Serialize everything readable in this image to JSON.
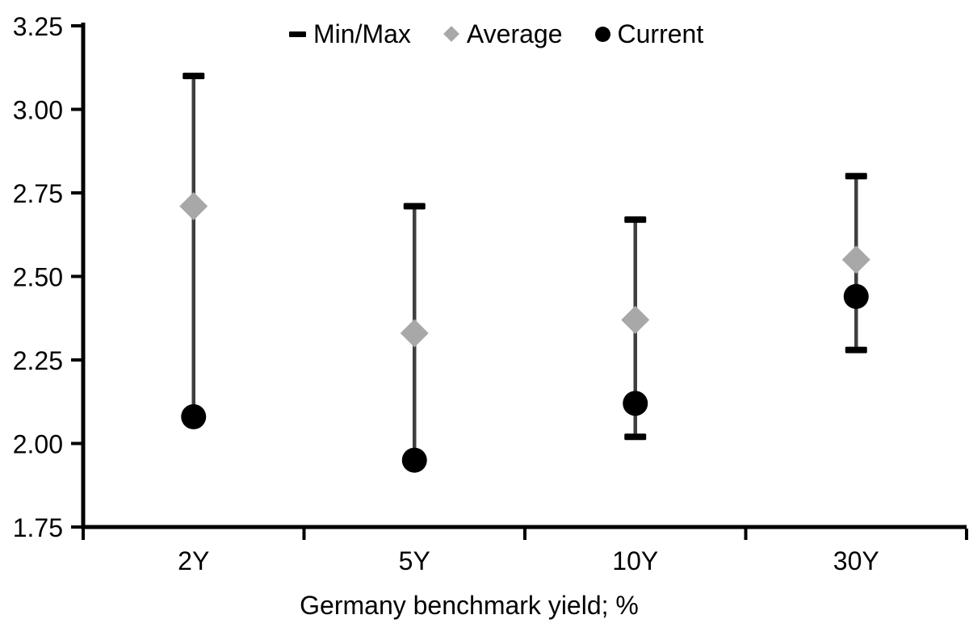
{
  "chart_data": {
    "type": "scatter",
    "subtype": "min-max-range-with-markers",
    "categories": [
      "2Y",
      "5Y",
      "10Y",
      "30Y"
    ],
    "series": [
      {
        "name": "Min/Max",
        "role": "range",
        "marker": "dash",
        "max": [
          3.1,
          2.71,
          2.67,
          2.8
        ],
        "min": [
          2.08,
          1.95,
          2.02,
          2.28
        ]
      },
      {
        "name": "Average",
        "role": "point",
        "marker": "diamond",
        "values": [
          2.71,
          2.33,
          2.37,
          2.55
        ]
      },
      {
        "name": "Current",
        "role": "point",
        "marker": "circle",
        "values": [
          2.08,
          1.95,
          2.12,
          2.44
        ]
      }
    ],
    "xlabel": "Germany benchmark yield; %",
    "ylabel": "",
    "ylim": [
      1.75,
      3.25
    ],
    "ytick_step": 0.25,
    "ytick_labels": [
      "1.75",
      "2.00",
      "2.25",
      "2.50",
      "2.75",
      "3.00",
      "3.25"
    ],
    "grid": false,
    "legend_position": "top-center"
  },
  "colors": {
    "background": "#ffffff",
    "axis": "#000000",
    "range_line": "#3f3f3f",
    "cap": "#000000",
    "average_marker": "#a8a8a8",
    "current_marker": "#000000",
    "text": "#000000"
  }
}
